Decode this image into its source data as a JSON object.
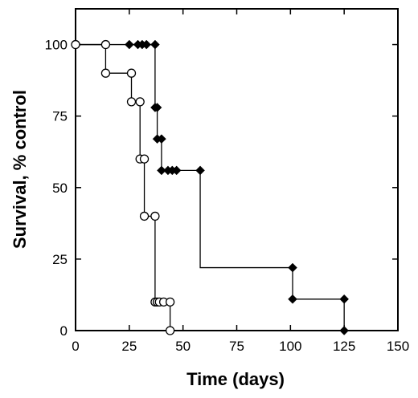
{
  "chart_data": {
    "type": "line",
    "step": true,
    "title": "",
    "xlabel": "Time (days)",
    "ylabel": "Survival, % control",
    "xlim": [
      0,
      150
    ],
    "ylim": [
      0,
      112.5
    ],
    "xticks": [
      0,
      25,
      50,
      75,
      100,
      125,
      150
    ],
    "yticks": [
      0,
      25,
      50,
      75,
      100
    ],
    "grid": false,
    "legend": "none",
    "series": [
      {
        "marker": "open-circle",
        "color": "#000000",
        "step": [
          [
            0,
            100
          ],
          [
            14,
            100
          ],
          [
            14,
            90
          ],
          [
            26,
            90
          ],
          [
            26,
            80
          ],
          [
            30,
            80
          ],
          [
            30,
            60
          ],
          [
            32,
            60
          ],
          [
            32,
            40
          ],
          [
            37,
            40
          ],
          [
            37,
            10
          ],
          [
            44,
            10
          ],
          [
            44,
            0
          ]
        ],
        "points": [
          [
            0,
            100
          ],
          [
            14,
            100
          ],
          [
            14,
            90
          ],
          [
            26,
            90
          ],
          [
            26,
            80
          ],
          [
            30,
            80
          ],
          [
            30,
            60
          ],
          [
            32,
            60
          ],
          [
            32,
            40
          ],
          [
            37,
            40
          ],
          [
            37,
            10
          ],
          [
            38,
            10
          ],
          [
            39,
            10
          ],
          [
            41,
            10
          ],
          [
            44,
            10
          ],
          [
            44,
            0
          ]
        ]
      },
      {
        "marker": "filled-diamond",
        "color": "#000000",
        "step": [
          [
            0,
            100
          ],
          [
            37,
            100
          ],
          [
            37,
            78
          ],
          [
            38,
            78
          ],
          [
            38,
            67
          ],
          [
            40,
            67
          ],
          [
            40,
            56
          ],
          [
            58,
            56
          ],
          [
            58,
            22
          ],
          [
            101,
            22
          ],
          [
            101,
            11
          ],
          [
            125,
            11
          ],
          [
            125,
            0
          ]
        ],
        "points": [
          [
            25,
            100
          ],
          [
            29,
            100
          ],
          [
            31,
            100
          ],
          [
            33,
            100
          ],
          [
            37,
            100
          ],
          [
            37,
            78
          ],
          [
            38,
            78
          ],
          [
            38,
            67
          ],
          [
            40,
            67
          ],
          [
            40,
            56
          ],
          [
            43,
            56
          ],
          [
            45,
            56
          ],
          [
            47,
            56
          ],
          [
            58,
            56
          ],
          [
            101,
            22
          ],
          [
            101,
            11
          ],
          [
            125,
            11
          ],
          [
            125,
            0
          ]
        ]
      }
    ]
  }
}
